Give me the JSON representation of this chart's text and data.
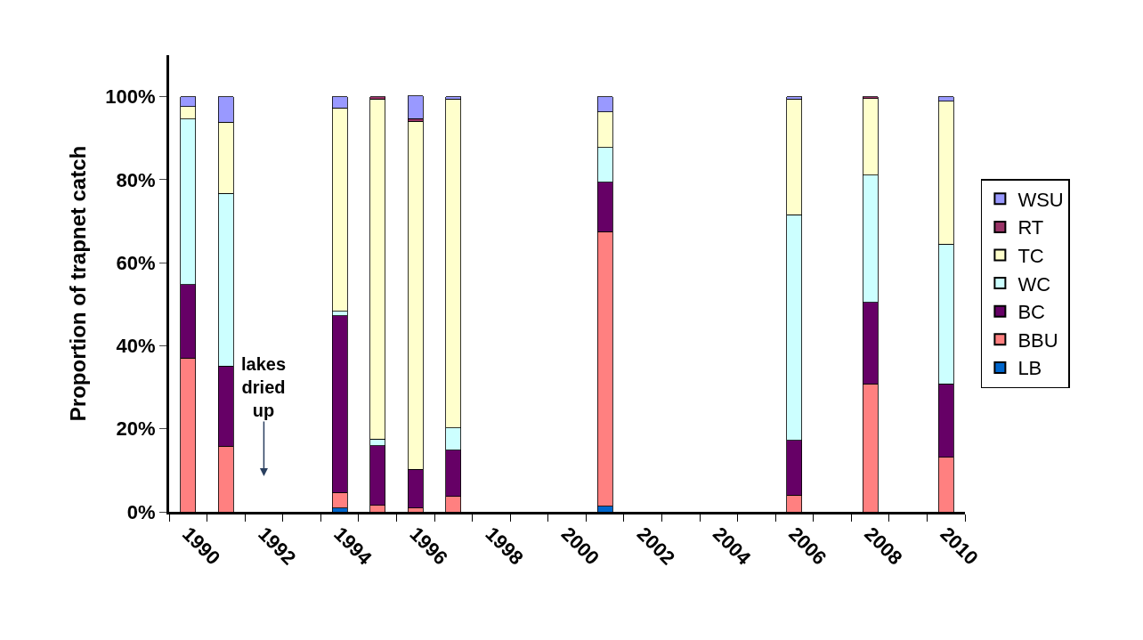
{
  "chart_data": {
    "type": "bar",
    "stacked": true,
    "ylabel": "Proportion of trapnet catch",
    "categories": [
      "1990",
      null,
      "1992",
      null,
      "1994",
      null,
      "1996",
      null,
      "1998",
      null,
      "2000",
      null,
      "2002",
      null,
      "2004",
      null,
      "2006",
      null,
      "2008",
      null,
      "2010"
    ],
    "series": [
      {
        "name": "LB",
        "color": "#0066cc",
        "values": [
          0,
          0,
          null,
          null,
          0.9,
          0,
          0,
          0,
          null,
          null,
          null,
          1.3,
          null,
          null,
          null,
          null,
          0,
          null,
          0,
          null,
          0
        ]
      },
      {
        "name": "BBU",
        "color": "#ff8080",
        "values": [
          37.0,
          15.8,
          null,
          null,
          3.8,
          1.6,
          0.9,
          3.7,
          null,
          null,
          null,
          66.2,
          null,
          null,
          null,
          null,
          4.0,
          null,
          30.8,
          null,
          13.1
        ]
      },
      {
        "name": "BC",
        "color": "#660066",
        "values": [
          17.7,
          19.3,
          null,
          null,
          42.5,
          14.3,
          9.3,
          11.2,
          null,
          null,
          null,
          11.9,
          null,
          null,
          null,
          null,
          13.2,
          null,
          19.6,
          null,
          17.7
        ]
      },
      {
        "name": "WC",
        "color": "#ccffff",
        "values": [
          39.9,
          41.6,
          null,
          null,
          1.1,
          1.6,
          0,
          5.3,
          null,
          null,
          null,
          8.4,
          null,
          null,
          null,
          null,
          54.4,
          null,
          30.7,
          null,
          33.7
        ]
      },
      {
        "name": "TC",
        "color": "#ffffcc",
        "values": [
          3.0,
          17.2,
          null,
          null,
          49.0,
          81.9,
          83.9,
          79.2,
          null,
          null,
          null,
          8.5,
          null,
          null,
          null,
          null,
          27.8,
          null,
          18.5,
          null,
          34.4
        ]
      },
      {
        "name": "RT",
        "color": "#993366",
        "values": [
          0,
          0,
          null,
          null,
          0,
          0.6,
          0.6,
          0,
          null,
          null,
          null,
          0,
          null,
          null,
          null,
          null,
          0,
          null,
          0.4,
          null,
          0
        ]
      },
      {
        "name": "WSU",
        "color": "#9999ff",
        "values": [
          2.4,
          6.1,
          null,
          null,
          2.7,
          0,
          5.5,
          0.6,
          null,
          null,
          null,
          3.7,
          null,
          null,
          null,
          null,
          0.6,
          null,
          0,
          null,
          1.1
        ]
      }
    ],
    "ylim": [
      0,
      110
    ],
    "yticks": [
      {
        "value": 0,
        "label": "0%"
      },
      {
        "value": 20,
        "label": "20%"
      },
      {
        "value": 40,
        "label": "40%"
      },
      {
        "value": 60,
        "label": "60%"
      },
      {
        "value": 80,
        "label": "80%"
      },
      {
        "value": 100,
        "label": "100%"
      }
    ],
    "annotations": [
      "lakes\ndried\nup"
    ],
    "legend": "right"
  }
}
